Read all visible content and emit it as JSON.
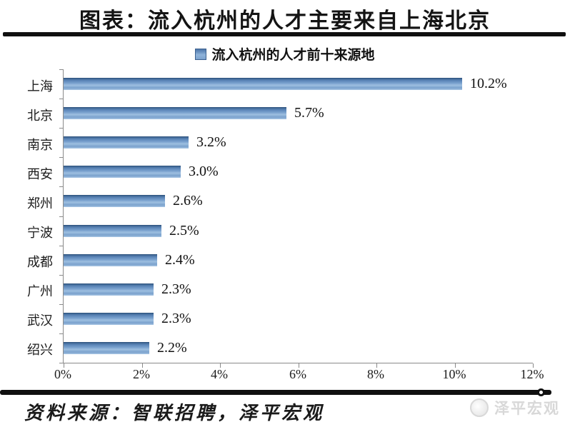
{
  "page": {
    "title": "图表：流入杭州的人才主要来自上海北京",
    "source_note": "资料来源：智联招聘，泽平宏观",
    "watermark_text": "泽平宏观"
  },
  "icons": {
    "legend_swatch": "blue-square-marker",
    "watermark_logo": "round-logo-badge",
    "line_end_dot": "small-circle-cap"
  },
  "chart_data": {
    "type": "bar",
    "orientation": "horizontal",
    "title": "流入杭州的人才前十来源地",
    "legend": [
      "流入杭州的人才前十来源地"
    ],
    "legend_position": "top-center",
    "categories": [
      "上海",
      "北京",
      "南京",
      "西安",
      "郑州",
      "宁波",
      "成都",
      "广州",
      "武汉",
      "绍兴"
    ],
    "values": [
      10.2,
      5.7,
      3.2,
      3.0,
      2.6,
      2.5,
      2.4,
      2.3,
      2.3,
      2.2
    ],
    "value_labels": [
      "10.2%",
      "5.7%",
      "3.2%",
      "3.0%",
      "2.6%",
      "2.5%",
      "2.4%",
      "2.3%",
      "2.3%",
      "2.2%"
    ],
    "x_ticks": [
      "0%",
      "2%",
      "4%",
      "6%",
      "8%",
      "10%",
      "12%"
    ],
    "xlim": [
      0,
      12
    ],
    "grid": false,
    "bar_color": "#7aa1cd",
    "bar_border_color": "#2f5580",
    "axis_color": "#8a8a8a"
  }
}
